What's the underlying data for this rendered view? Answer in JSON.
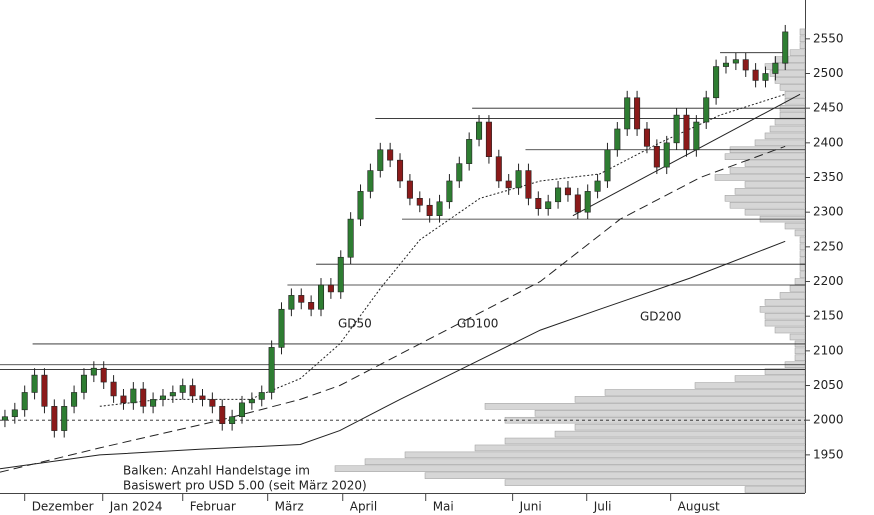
{
  "chart_data": {
    "type": "candlestick",
    "ylim": [
      1895,
      2606
    ],
    "yticks": [
      1950,
      2000,
      2050,
      2100,
      2150,
      2200,
      2250,
      2300,
      2350,
      2400,
      2450,
      2500,
      2550
    ],
    "xlim": [
      -0.5,
      81
    ],
    "xticks": [
      {
        "value": 2.0,
        "label": "Dezember"
      },
      {
        "value": 9.9,
        "label": "Jan 2024"
      },
      {
        "value": 18.0,
        "label": "Februar"
      },
      {
        "value": 26.6,
        "label": "März"
      },
      {
        "value": 34.2,
        "label": "April"
      },
      {
        "value": 42.6,
        "label": "Mai"
      },
      {
        "value": 51.4,
        "label": "Juni"
      },
      {
        "value": 58.9,
        "label": "Juli"
      },
      {
        "value": 67.4,
        "label": "August"
      }
    ],
    "up_color": "#2e7d32",
    "down_color": "#8b1a1a",
    "open": [
      2000,
      2005,
      2015,
      2040,
      2065,
      2020,
      1985,
      2020,
      2040,
      2065,
      2075,
      2055,
      2035,
      2025,
      2045,
      2020,
      2030,
      2035,
      2040,
      2050,
      2035,
      2030,
      2020,
      1995,
      2005,
      2025,
      2030,
      2040,
      2105,
      2160,
      2180,
      2170,
      2160,
      2195,
      2185,
      2235,
      2290,
      2330,
      2360,
      2390,
      2375,
      2345,
      2320,
      2310,
      2295,
      2315,
      2345,
      2370,
      2405,
      2430,
      2380,
      2345,
      2335,
      2360,
      2320,
      2305,
      2315,
      2335,
      2325,
      2300,
      2330,
      2345,
      2390,
      2420,
      2465,
      2420,
      2395,
      2365,
      2400,
      2440,
      2390,
      2430,
      2465,
      2510,
      2515,
      2520,
      2505,
      2490,
      2500,
      2515
    ],
    "close": [
      2005,
      2015,
      2040,
      2065,
      2020,
      1985,
      2020,
      2040,
      2065,
      2075,
      2055,
      2035,
      2025,
      2045,
      2020,
      2030,
      2035,
      2040,
      2050,
      2035,
      2030,
      2020,
      1995,
      2005,
      2025,
      2030,
      2040,
      2105,
      2160,
      2180,
      2170,
      2160,
      2195,
      2185,
      2235,
      2290,
      2330,
      2360,
      2390,
      2375,
      2345,
      2320,
      2310,
      2295,
      2315,
      2345,
      2370,
      2405,
      2430,
      2380,
      2345,
      2335,
      2360,
      2320,
      2305,
      2315,
      2335,
      2325,
      2300,
      2330,
      2345,
      2390,
      2420,
      2465,
      2420,
      2395,
      2365,
      2400,
      2440,
      2390,
      2430,
      2465,
      2510,
      2515,
      2520,
      2505,
      2490,
      2500,
      2515,
      2560
    ],
    "high": [
      2015,
      2025,
      2050,
      2075,
      2075,
      2030,
      2030,
      2050,
      2075,
      2085,
      2085,
      2065,
      2045,
      2055,
      2055,
      2040,
      2045,
      2050,
      2060,
      2060,
      2045,
      2040,
      2030,
      2015,
      2035,
      2040,
      2050,
      2115,
      2170,
      2190,
      2190,
      2180,
      2205,
      2205,
      2245,
      2300,
      2340,
      2370,
      2400,
      2400,
      2385,
      2355,
      2330,
      2320,
      2325,
      2355,
      2380,
      2415,
      2440,
      2440,
      2390,
      2355,
      2370,
      2370,
      2330,
      2325,
      2345,
      2345,
      2335,
      2340,
      2355,
      2400,
      2430,
      2475,
      2475,
      2430,
      2405,
      2410,
      2450,
      2450,
      2440,
      2475,
      2520,
      2525,
      2530,
      2530,
      2515,
      2510,
      2525,
      2570
    ],
    "low": [
      1990,
      1995,
      2005,
      2030,
      2010,
      1975,
      1975,
      2010,
      2030,
      2055,
      2045,
      2025,
      2015,
      2015,
      2010,
      2010,
      2020,
      2025,
      2030,
      2025,
      2020,
      2010,
      1985,
      1985,
      1995,
      2015,
      2020,
      2030,
      2095,
      2150,
      2160,
      2150,
      2150,
      2175,
      2175,
      2225,
      2280,
      2320,
      2350,
      2365,
      2335,
      2310,
      2300,
      2285,
      2285,
      2305,
      2335,
      2360,
      2395,
      2370,
      2335,
      2325,
      2325,
      2310,
      2295,
      2295,
      2305,
      2315,
      2290,
      2290,
      2320,
      2335,
      2380,
      2410,
      2410,
      2385,
      2355,
      2355,
      2390,
      2380,
      2380,
      2420,
      2455,
      2500,
      2505,
      2495,
      2480,
      2480,
      2490,
      2505
    ],
    "series": [
      {
        "name": "GD50",
        "style": "dotted",
        "x": [
          9.6,
          15.7,
          24.8,
          29.9,
          33.9,
          38,
          42,
          48.1,
          54.2,
          60.2,
          66.3,
          72.4,
          79
        ],
        "values": [
          2020,
          2030,
          2030,
          2060,
          2110,
          2190,
          2260,
          2320,
          2345,
          2355,
          2400,
          2440,
          2470
        ]
      },
      {
        "name": "GD100",
        "style": "dashed",
        "x": [
          -0.5,
          9.6,
          21.8,
          29.9,
          33.9,
          42,
          54.2,
          62.3,
          70.4,
          79
        ],
        "values": [
          1925,
          1960,
          2000,
          2030,
          2050,
          2110,
          2200,
          2290,
          2350,
          2395
        ]
      },
      {
        "name": "GD200",
        "style": "solid",
        "x": [
          -0.5,
          9.6,
          19.7,
          29.9,
          33.9,
          40,
          47.1,
          54.2,
          60.2,
          69.4,
          79
        ],
        "values": [
          1930,
          1950,
          1958,
          1965,
          1985,
          2030,
          2080,
          2130,
          2160,
          2205,
          2258
        ]
      }
    ],
    "trendlines": [
      {
        "x": [
          57.5,
          80.5
        ],
        "values": [
          2295,
          2470
        ]
      }
    ],
    "levels": [
      {
        "value": 2530,
        "x": [
          72.4,
          79
        ]
      },
      {
        "value": 2450,
        "x": [
          47.3,
          81
        ]
      },
      {
        "value": 2435,
        "x": [
          37.5,
          81
        ]
      },
      {
        "value": 2390,
        "x": [
          52.7,
          81
        ]
      },
      {
        "value": 2290,
        "x": [
          40.2,
          81
        ]
      },
      {
        "value": 2225,
        "x": [
          31.5,
          81
        ]
      },
      {
        "value": 2195,
        "x": [
          28.6,
          81
        ]
      },
      {
        "value": 2110,
        "x": [
          2.8,
          81
        ]
      },
      {
        "value": 2080,
        "x": [
          -0.5,
          81
        ]
      },
      {
        "value": 2073,
        "x": [
          -0.5,
          81
        ]
      },
      {
        "value": 2000,
        "x": [
          -0.5,
          81
        ],
        "style": "dashed"
      }
    ],
    "profile": {
      "bins": [
        1895,
        1905,
        1915,
        1925,
        1935,
        1945,
        1955,
        1965,
        1975,
        1985,
        1995,
        2005,
        2015,
        2025,
        2035,
        2045,
        2055,
        2065,
        2075,
        2085,
        2095,
        2105,
        2115,
        2125,
        2135,
        2145,
        2155,
        2165,
        2175,
        2185,
        2195,
        2205,
        2215,
        2225,
        2235,
        2245,
        2255,
        2265,
        2275,
        2285,
        2295,
        2305,
        2315,
        2325,
        2335,
        2345,
        2355,
        2365,
        2375,
        2385,
        2395,
        2405,
        2415,
        2425,
        2435,
        2445,
        2455,
        2465,
        2475,
        2485,
        2495,
        2505,
        2515,
        2525,
        2535,
        2545,
        2555,
        2565
      ],
      "values": [
        12,
        60,
        76,
        94,
        88,
        80,
        66,
        60,
        50,
        46,
        60,
        54,
        64,
        46,
        40,
        22,
        14,
        8,
        4,
        2,
        2,
        2,
        3,
        6,
        8,
        8,
        9,
        8,
        5,
        3,
        2,
        1,
        1,
        1,
        1,
        1,
        1,
        2,
        4,
        9,
        12,
        15,
        16,
        14,
        12,
        18,
        15,
        12,
        16,
        15,
        10,
        8,
        7,
        6,
        5,
        5,
        4,
        4,
        5,
        6,
        7,
        8,
        6,
        3,
        1,
        1,
        1
      ]
    },
    "note": [
      "Balken: Anzahl Handelstage im",
      "Basiswert pro USD 5.00 (seit März 2020)"
    ]
  }
}
